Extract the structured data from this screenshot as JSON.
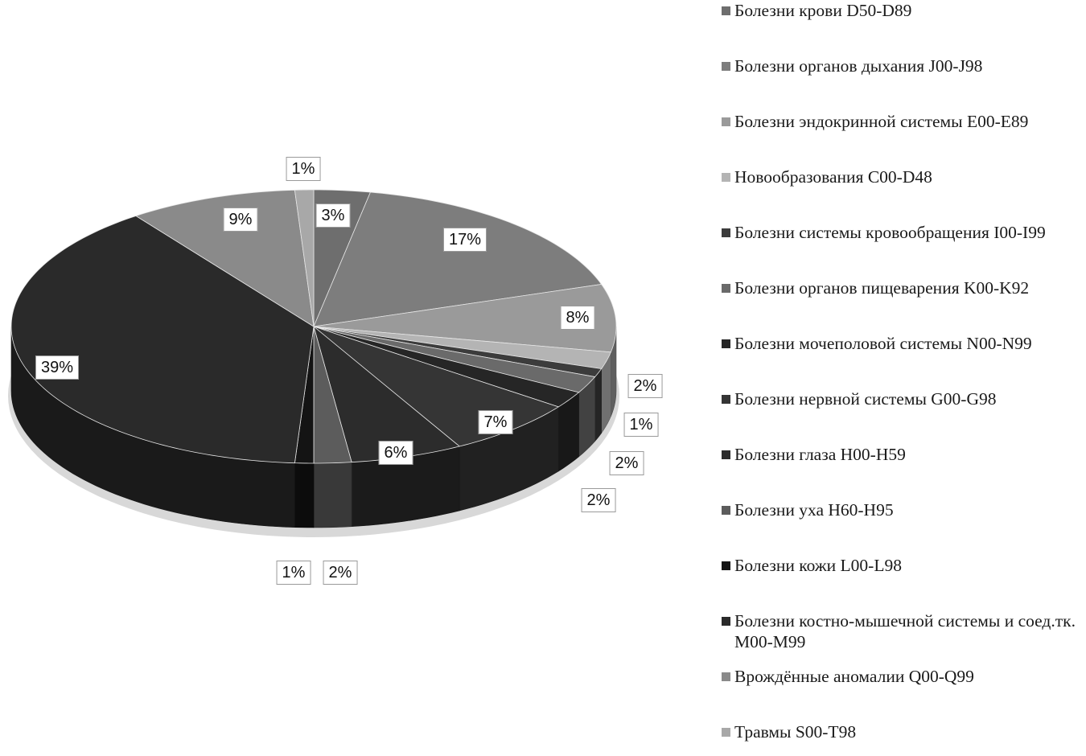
{
  "chart_data": {
    "type": "pie",
    "title": "",
    "three_d": true,
    "legend_position": "right",
    "categories": [
      "Болезни крови D50-D89",
      "Болезни органов дыхания J00-J98",
      "Болезни эндокринной системы E00-E89",
      "Новообразования C00-D48",
      "Болезни системы кровообращения I00-I99",
      "Болезни органов пищеварения K00-K92",
      "Болезни мочеполовой системы N00-N99",
      "Болезни нервной системы G00-G98",
      "Болезни глаза H00-H59",
      "Болезни уха H60-H95",
      "Болезни кожи L00-L98",
      "Болезни костно-мышечной системы и соед.тк. M00-M99",
      "Врождённые аномалии Q00-Q99",
      "Травмы S00-T98"
    ],
    "values": [
      3,
      17,
      8,
      2,
      1,
      2,
      2,
      7,
      6,
      2,
      1,
      39,
      9,
      1
    ],
    "data_labels": [
      "3%",
      "17%",
      "8%",
      "2%",
      "1%",
      "2%",
      "2%",
      "7%",
      "6%",
      "2%",
      "1%",
      "39%",
      "9%",
      "1%"
    ],
    "colors": [
      "#6e6e6e",
      "#7d7d7d",
      "#9a9a9a",
      "#b4b4b4",
      "#3c3c3c",
      "#6a6a6a",
      "#262626",
      "#353535",
      "#2c2c2c",
      "#5c5c5c",
      "#141414",
      "#2a2a2a",
      "#8a8a8a",
      "#a8a8a8"
    ]
  }
}
